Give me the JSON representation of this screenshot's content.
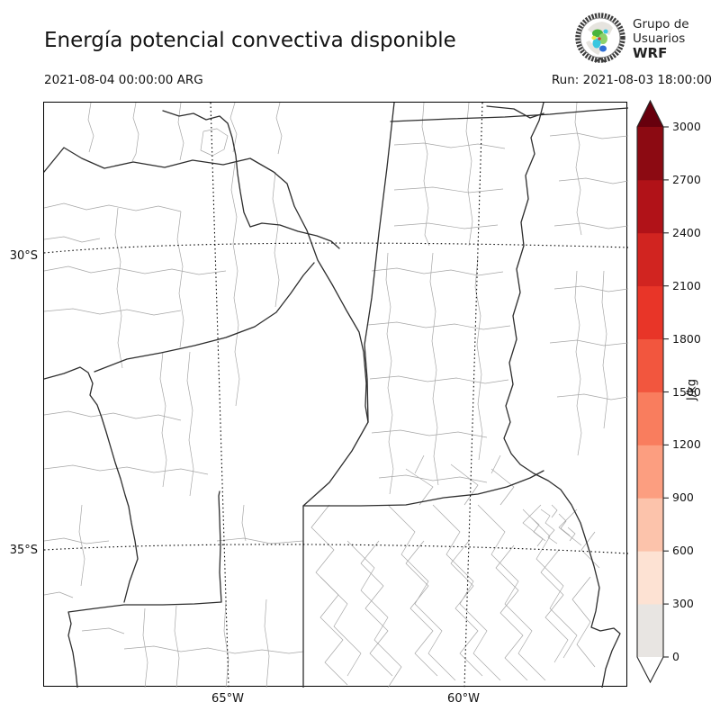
{
  "header": {
    "title": "Energía potencial convectiva disponible",
    "valid_time": "2021-08-04 00:00:00 ARG",
    "run_label": "Run: 2021-08-03 18:00:00"
  },
  "logo": {
    "line1": "Grupo de",
    "line2": "Usuarios",
    "line3": "WRF"
  },
  "map": {
    "yticks": [
      "30°S",
      "35°S"
    ],
    "xticks": [
      "65°W",
      "60°W"
    ]
  },
  "colorbar": {
    "unit_label": "J/kg",
    "levels": [
      0,
      300,
      600,
      900,
      1200,
      1500,
      1800,
      2100,
      2400,
      2700,
      3000
    ],
    "bin_colors": [
      "#e8e5e2",
      "#fde2d3",
      "#fcc3ab",
      "#fc9e80",
      "#f97d5e",
      "#f2563e",
      "#e83528",
      "#d12420",
      "#b11218",
      "#8c0a12"
    ],
    "extend_over_color": "#67000d",
    "extend_under_color": "#ffffff",
    "outline_color": "#262626"
  }
}
